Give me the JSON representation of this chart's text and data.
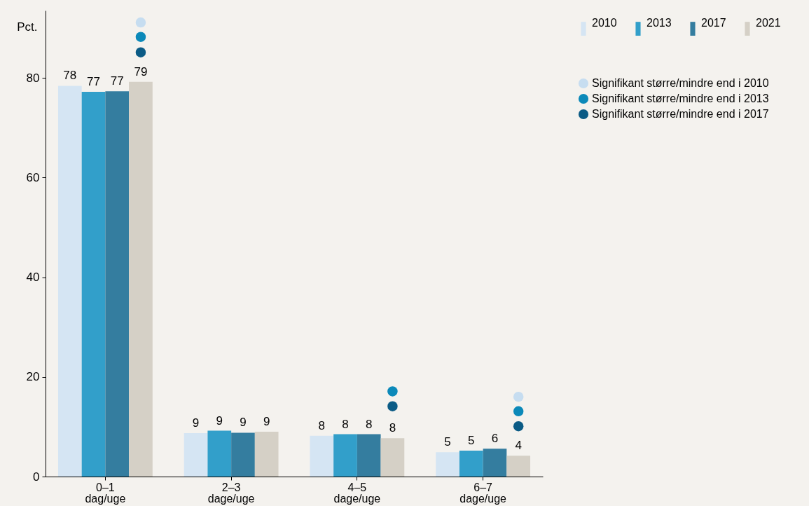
{
  "chart_data": {
    "type": "bar",
    "ylabel": "Pct.",
    "categories": [
      "0–1 dag/uge",
      "2–3 dage/uge",
      "4–5 dage/uge",
      "6–7 dage/uge"
    ],
    "ylim": [
      0,
      93.5
    ],
    "yticks": [
      0,
      20,
      40,
      60,
      80
    ],
    "grid": false,
    "legend": "top right",
    "series": [
      {
        "name": "2010",
        "color": "#d5e5f3",
        "values": [
          78.4,
          8.7,
          8.2,
          4.9
        ],
        "value_labels": [
          "78",
          "9",
          "8",
          "5"
        ]
      },
      {
        "name": "2013",
        "color": "#329fca",
        "values": [
          77.2,
          9.2,
          8.5,
          5.2
        ],
        "value_labels": [
          "77",
          "9",
          "8",
          "5"
        ]
      },
      {
        "name": "2017",
        "color": "#347d9f",
        "values": [
          77.3,
          8.8,
          8.5,
          5.6
        ],
        "value_labels": [
          "77",
          "9",
          "8",
          "6"
        ]
      },
      {
        "name": "2021",
        "color": "#d5d0c6",
        "values": [
          79.2,
          9.0,
          7.7,
          4.2
        ],
        "value_labels": [
          "79",
          "9",
          "8",
          "4"
        ]
      },
      {
        "type": "scatter",
        "name": "Signifikant større/mindre end i 2010",
        "color": "#c6ddf0",
        "x": [
          "0–1 dag/uge",
          "6–7 dage/uge"
        ],
        "values": [
          91.1,
          16.0
        ]
      },
      {
        "type": "scatter",
        "name": "Signifikant større/mindre end i 2013",
        "color": "#0b89b9",
        "x": [
          "0–1 dag/uge",
          "4–5 dage/uge",
          "6–7 dage/uge"
        ],
        "values": [
          88.2,
          17.1,
          13.1
        ]
      },
      {
        "type": "scatter",
        "name": "Signifikant større/mindre end i 2017",
        "color": "#0b5b85",
        "x": [
          "0–1 dag/uge",
          "4–5 dage/uge",
          "6–7 dage/uge"
        ],
        "values": [
          85.1,
          14.1,
          10.1
        ]
      }
    ]
  }
}
